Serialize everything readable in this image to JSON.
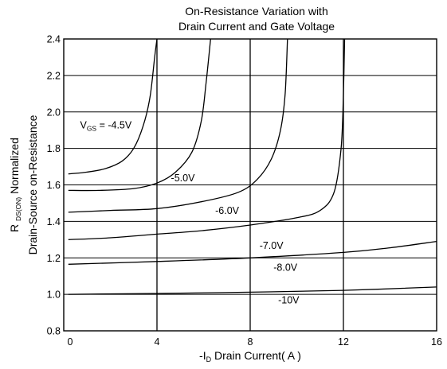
{
  "chart_data": {
    "type": "line",
    "title_lines": [
      "On-Resistance Variation with",
      "Drain Current and Gate Voltage"
    ],
    "xlabel": {
      "prefix": "-I",
      "sub": "D",
      "rest": " Drain Current( A )"
    },
    "ylabel": {
      "line1": {
        "prefix": "R ",
        "sub": "DS(ON)",
        "rest": " Normalized"
      },
      "line2": "Drain-Source on-Resistance"
    },
    "xlim": [
      0,
      16
    ],
    "ylim": [
      0.8,
      2.4
    ],
    "xticks": [
      0,
      4,
      8,
      12,
      16
    ],
    "yticks": [
      "0.8",
      "1.0",
      "1.2",
      "1.4",
      "1.6",
      "1.8",
      "2.0",
      "2.2",
      "2.4"
    ],
    "grid": true,
    "series": [
      {
        "name": "-4.5V",
        "label": {
          "prefix": "V",
          "sub": "GS",
          "rest": " = -4.5V"
        },
        "label_at": [
          0.7,
          1.91
        ],
        "points": [
          [
            0.2,
            1.66
          ],
          [
            1.0,
            1.67
          ],
          [
            1.8,
            1.69
          ],
          [
            2.5,
            1.73
          ],
          [
            3.0,
            1.8
          ],
          [
            3.4,
            1.92
          ],
          [
            3.7,
            2.08
          ],
          [
            3.9,
            2.3
          ],
          [
            4.0,
            2.4
          ]
        ]
      },
      {
        "name": "-5.0V",
        "label": {
          "prefix": "",
          "sub": "",
          "rest": "-5.0V"
        },
        "label_at": [
          4.6,
          1.62
        ],
        "points": [
          [
            0.2,
            1.57
          ],
          [
            1.5,
            1.57
          ],
          [
            3.0,
            1.58
          ],
          [
            4.0,
            1.61
          ],
          [
            4.8,
            1.67
          ],
          [
            5.5,
            1.78
          ],
          [
            5.9,
            1.95
          ],
          [
            6.1,
            2.15
          ],
          [
            6.3,
            2.4
          ]
        ]
      },
      {
        "name": "-6.0V",
        "label": {
          "prefix": "",
          "sub": "",
          "rest": "-6.0V"
        },
        "label_at": [
          6.5,
          1.44
        ],
        "points": [
          [
            0.2,
            1.45
          ],
          [
            2.0,
            1.46
          ],
          [
            4.0,
            1.47
          ],
          [
            6.0,
            1.51
          ],
          [
            7.5,
            1.56
          ],
          [
            8.3,
            1.63
          ],
          [
            8.9,
            1.74
          ],
          [
            9.3,
            1.9
          ],
          [
            9.5,
            2.1
          ],
          [
            9.6,
            2.4
          ]
        ]
      },
      {
        "name": "-7.0V",
        "label": {
          "prefix": "",
          "sub": "",
          "rest": "-7.0V"
        },
        "label_at": [
          8.4,
          1.25
        ],
        "points": [
          [
            0.2,
            1.3
          ],
          [
            2.0,
            1.31
          ],
          [
            4.0,
            1.33
          ],
          [
            6.0,
            1.35
          ],
          [
            8.0,
            1.38
          ],
          [
            10.0,
            1.42
          ],
          [
            11.0,
            1.46
          ],
          [
            11.6,
            1.56
          ],
          [
            11.9,
            1.8
          ],
          [
            12.0,
            2.1
          ],
          [
            12.05,
            2.4
          ]
        ]
      },
      {
        "name": "-8.0V",
        "label": {
          "prefix": "",
          "sub": "",
          "rest": "-8.0V"
        },
        "label_at": [
          9.0,
          1.13
        ],
        "points": [
          [
            0.2,
            1.165
          ],
          [
            4.0,
            1.18
          ],
          [
            8.0,
            1.2
          ],
          [
            12.0,
            1.23
          ],
          [
            14.0,
            1.255
          ],
          [
            16.0,
            1.29
          ]
        ]
      },
      {
        "name": "-10V",
        "label": {
          "prefix": "",
          "sub": "",
          "rest": "-10V"
        },
        "label_at": [
          9.2,
          0.95
        ],
        "points": [
          [
            0.2,
            1.0
          ],
          [
            4.0,
            1.005
          ],
          [
            8.0,
            1.012
          ],
          [
            12.0,
            1.022
          ],
          [
            16.0,
            1.04
          ]
        ]
      }
    ]
  }
}
